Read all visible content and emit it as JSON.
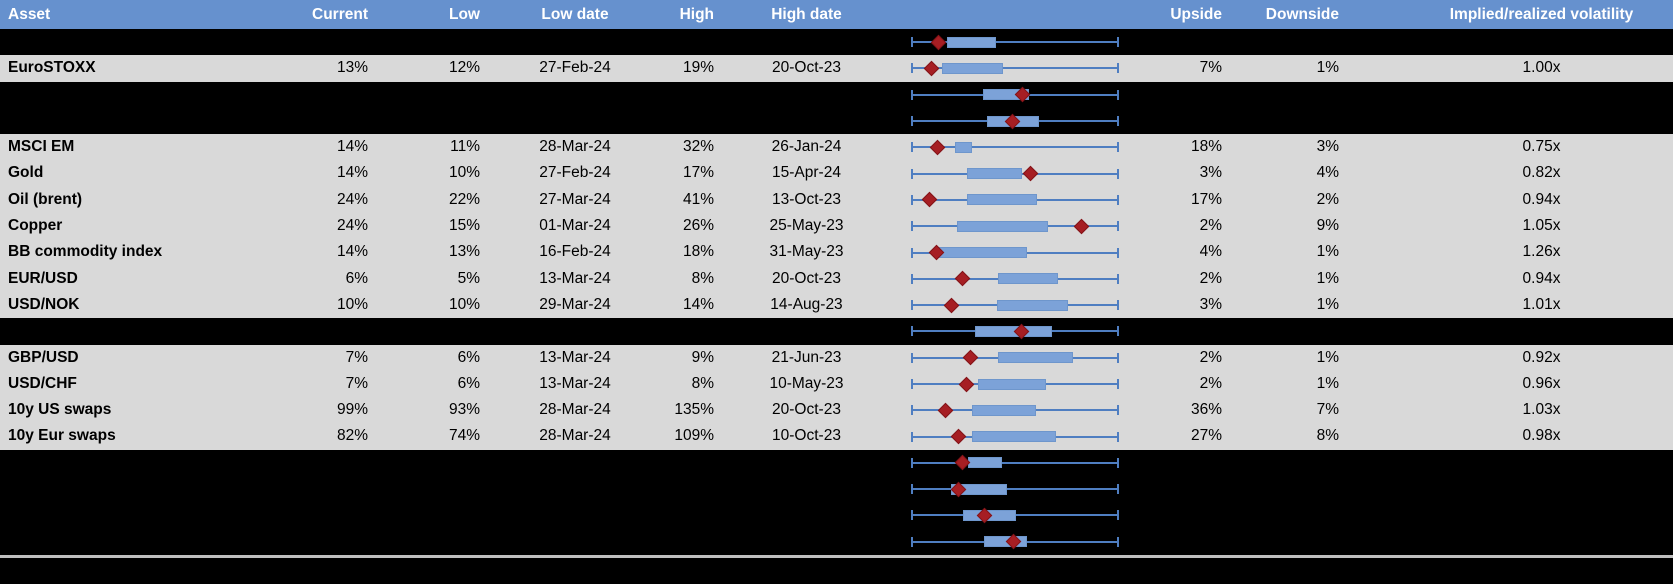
{
  "colors": {
    "header_bg": "#6691CE",
    "header_text": "#FFFFFF",
    "row_gray": "#D9D9D9",
    "spacer_black": "#000000",
    "text": "#000000",
    "whisker": "#4F7EC1",
    "box_fill": "#7CA2D8",
    "box_border": "#6E96CC",
    "marker_fill": "#A61E23",
    "marker_border": "#821418",
    "divider": "#BFBFBF"
  },
  "chart_data": {
    "type": "table",
    "description": "Implied volatility table with embedded normalized box-whisker range plots; red diamond = current level within 12-month low-high whisker span, blue box = interquartile band. Box/marker values are fractions (0-1) of the whisker span.",
    "legend_position": "none",
    "grid": false,
    "plot_track": {
      "whisker_span": [
        0,
        1
      ]
    },
    "columns": [
      {
        "id": "asset",
        "label": "Asset"
      },
      {
        "id": "current",
        "label": "Current"
      },
      {
        "id": "low",
        "label": "Low"
      },
      {
        "id": "low_date",
        "label": "Low date"
      },
      {
        "id": "high",
        "label": "High"
      },
      {
        "id": "high_date",
        "label": "High date"
      },
      {
        "id": "range_plot",
        "label": ""
      },
      {
        "id": "upside",
        "label": "Upside"
      },
      {
        "id": "downside",
        "label": "Downside"
      },
      {
        "id": "implied_realized",
        "label": "Implied/realized volatility"
      }
    ],
    "rows": [
      {
        "kind": "spacer",
        "plot": {
          "box": [
            0.17,
            0.41
          ],
          "marker": 0.13
        }
      },
      {
        "kind": "data",
        "asset": "EuroSTOXX",
        "current": "13%",
        "low": "12%",
        "low_date": "27-Feb-24",
        "high": "19%",
        "high_date": "20-Oct-23",
        "upside": "7%",
        "downside": "1%",
        "implied_realized": "1.00x",
        "plot": {
          "box": [
            0.144,
            0.443
          ],
          "marker": 0.097
        }
      },
      {
        "kind": "spacer",
        "plot": {
          "box": [
            0.346,
            0.568
          ],
          "marker": 0.537
        }
      },
      {
        "kind": "spacer",
        "plot": {
          "box": [
            0.363,
            0.618
          ],
          "marker": 0.487
        }
      },
      {
        "kind": "data",
        "asset": "MSCI EM",
        "current": "14%",
        "low": "11%",
        "low_date": "28-Mar-24",
        "high": "32%",
        "high_date": "26-Jan-24",
        "upside": "18%",
        "downside": "3%",
        "implied_realized": "0.75x",
        "plot": {
          "box": [
            0.209,
            0.293
          ],
          "marker": 0.125
        }
      },
      {
        "kind": "data",
        "asset": "Gold",
        "current": "14%",
        "low": "10%",
        "low_date": "27-Feb-24",
        "high": "17%",
        "high_date": "15-Apr-24",
        "upside": "3%",
        "downside": "4%",
        "implied_realized": "0.82x",
        "plot": {
          "box": [
            0.265,
            0.533
          ],
          "marker": 0.573
        }
      },
      {
        "kind": "data",
        "asset": "Oil (brent)",
        "current": "24%",
        "low": "22%",
        "low_date": "27-Mar-24",
        "high": "41%",
        "high_date": "13-Oct-23",
        "upside": "17%",
        "downside": "2%",
        "implied_realized": "0.94x",
        "plot": {
          "box": [
            0.265,
            0.605
          ],
          "marker": 0.087
        }
      },
      {
        "kind": "data",
        "asset": "Copper",
        "current": "24%",
        "low": "15%",
        "low_date": "01-Mar-24",
        "high": "26%",
        "high_date": "25-May-23",
        "upside": "2%",
        "downside": "9%",
        "implied_realized": "1.05x",
        "plot": {
          "box": [
            0.217,
            0.662
          ],
          "marker": 0.824
        }
      },
      {
        "kind": "data",
        "asset": "BB commodity index",
        "current": "14%",
        "low": "13%",
        "low_date": "16-Feb-24",
        "high": "18%",
        "high_date": "31-May-23",
        "upside": "4%",
        "downside": "1%",
        "implied_realized": "1.26x",
        "plot": {
          "box": [
            0.128,
            0.557
          ],
          "marker": 0.12
        }
      },
      {
        "kind": "data",
        "asset": "EUR/USD",
        "current": "6%",
        "low": "5%",
        "low_date": "13-Mar-24",
        "high": "8%",
        "high_date": "20-Oct-23",
        "upside": "2%",
        "downside": "1%",
        "implied_realized": "0.94x",
        "plot": {
          "box": [
            0.419,
            0.71
          ],
          "marker": 0.246
        }
      },
      {
        "kind": "data",
        "asset": "USD/NOK",
        "current": "10%",
        "low": "10%",
        "low_date": "29-Mar-24",
        "high": "14%",
        "high_date": "14-Aug-23",
        "upside": "3%",
        "downside": "1%",
        "implied_realized": "1.01x",
        "plot": {
          "box": [
            0.411,
            0.759
          ],
          "marker": 0.193
        }
      },
      {
        "kind": "spacer",
        "plot": {
          "box": [
            0.306,
            0.678
          ],
          "marker": 0.532
        }
      },
      {
        "kind": "data",
        "asset": "GBP/USD",
        "current": "7%",
        "low": "6%",
        "low_date": "13-Mar-24",
        "high": "9%",
        "high_date": "21-Jun-23",
        "upside": "2%",
        "downside": "1%",
        "implied_realized": "0.92x",
        "plot": {
          "box": [
            0.419,
            0.783
          ],
          "marker": 0.285
        }
      },
      {
        "kind": "data",
        "asset": "USD/CHF",
        "current": "7%",
        "low": "6%",
        "low_date": "13-Mar-24",
        "high": "8%",
        "high_date": "10-May-23",
        "upside": "2%",
        "downside": "1%",
        "implied_realized": "0.96x",
        "plot": {
          "box": [
            0.322,
            0.65
          ],
          "marker": 0.265
        }
      },
      {
        "kind": "data",
        "asset": "10y US swaps",
        "current": "99%",
        "low": "93%",
        "low_date": "28-Mar-24",
        "high": "135%",
        "high_date": "20-Oct-23",
        "upside": "36%",
        "downside": "7%",
        "implied_realized": "1.03x",
        "plot": {
          "box": [
            0.29,
            0.6
          ],
          "marker": 0.165
        }
      },
      {
        "kind": "data",
        "asset": "10y Eur swaps",
        "current": "82%",
        "low": "74%",
        "low_date": "28-Mar-24",
        "high": "109%",
        "high_date": "10-Oct-23",
        "upside": "27%",
        "downside": "8%",
        "implied_realized": "0.98x",
        "plot": {
          "box": [
            0.29,
            0.699
          ],
          "marker": 0.225
        }
      },
      {
        "kind": "spacer",
        "plot": {
          "box": [
            0.273,
            0.438
          ],
          "marker": 0.246
        }
      },
      {
        "kind": "spacer",
        "plot": {
          "box": [
            0.188,
            0.463
          ],
          "marker": 0.228
        }
      },
      {
        "kind": "spacer",
        "plot": {
          "box": [
            0.249,
            0.503
          ],
          "marker": 0.35
        }
      },
      {
        "kind": "spacer",
        "plot": {
          "box": [
            0.35,
            0.557
          ],
          "marker": 0.492
        }
      }
    ]
  }
}
